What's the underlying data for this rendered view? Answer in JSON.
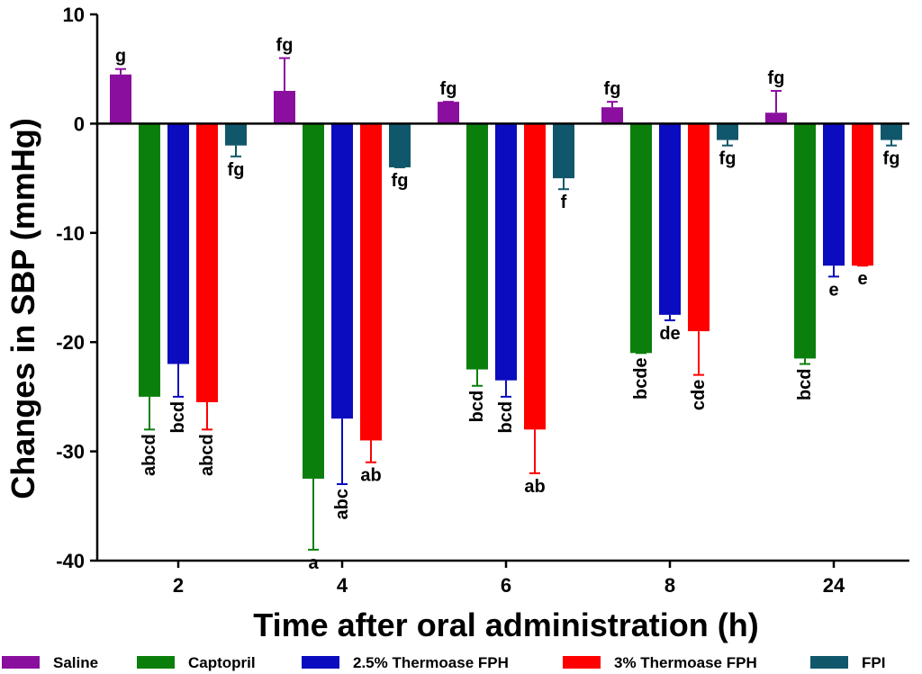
{
  "chart_data": {
    "type": "bar",
    "xlabel": "Time after oral administration (h)",
    "ylabel": "Changes in SBP (mmHg)",
    "ylim": [
      -40,
      10
    ],
    "yticks": [
      "10",
      "0",
      "-10",
      "-20",
      "-30",
      "-40"
    ],
    "categories": [
      "2",
      "4",
      "6",
      "8",
      "24"
    ],
    "grid": false,
    "legend_position": "bottom",
    "series": [
      {
        "name": "Saline",
        "color": "#8a0f9e",
        "values": [
          4.5,
          3.0,
          2.0,
          1.5,
          1.0
        ],
        "errors": [
          0.5,
          3.0,
          0.0,
          0.5,
          2.0
        ],
        "labels": [
          "g",
          "fg",
          "fg",
          "fg",
          "fg"
        ]
      },
      {
        "name": "Captopril",
        "color": "#0b7f0b",
        "values": [
          -25.0,
          -32.5,
          -22.5,
          -21.0,
          -21.5
        ],
        "errors": [
          3.0,
          6.5,
          1.5,
          0.0,
          0.5
        ],
        "labels": [
          "abcd",
          "a",
          "bcd",
          "bcde",
          "bcd"
        ]
      },
      {
        "name": "2.5% Thermoase FPH",
        "color": "#0b0bbf",
        "values": [
          -22.0,
          -27.0,
          -23.5,
          -17.5,
          -13.0
        ],
        "errors": [
          3.0,
          6.0,
          1.5,
          0.5,
          1.0
        ],
        "labels": [
          "bcd",
          "abc",
          "bcd",
          "de",
          "e"
        ]
      },
      {
        "name": "3% Thermoase FPH",
        "color": "#ff0000",
        "values": [
          -25.5,
          -29.0,
          -28.0,
          -19.0,
          -13.0
        ],
        "errors": [
          2.5,
          2.0,
          4.0,
          4.0,
          0.0
        ],
        "labels": [
          "abcd",
          "ab",
          "ab",
          "cde",
          "e"
        ]
      },
      {
        "name": "FPI",
        "color": "#11576b",
        "values": [
          -2.0,
          -4.0,
          -5.0,
          -1.5,
          -1.5
        ],
        "errors": [
          1.0,
          0.0,
          1.0,
          0.5,
          0.5
        ],
        "labels": [
          "fg",
          "fg",
          "f",
          "fg",
          "fg"
        ]
      }
    ]
  }
}
